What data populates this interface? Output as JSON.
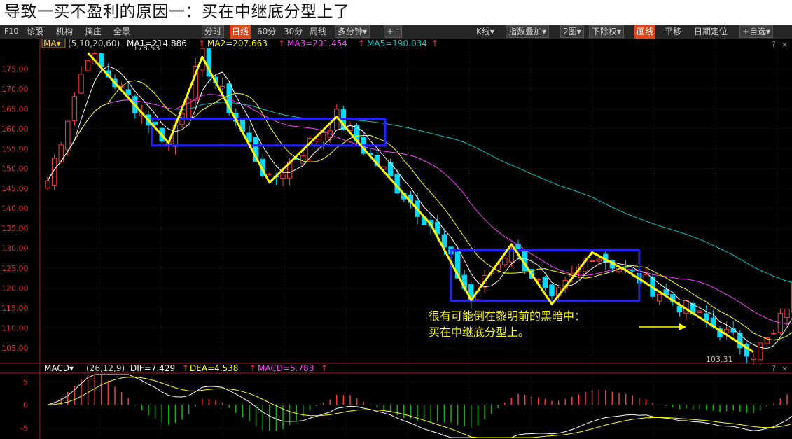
{
  "page_title": "导致一买不盈利的原因一：买在中继底分型上了",
  "toolbar": {
    "left": [
      "F10",
      "诊股",
      "机构",
      "擒庄",
      "全景"
    ],
    "periods": [
      "分时",
      "日线",
      "60分",
      "30分",
      "周线",
      "多分钟▾"
    ],
    "selected_period": "日线",
    "plus_minus": "+ -",
    "right": [
      "K线▾",
      "指数叠加▾",
      "2图▾",
      "下除权▾",
      "画线",
      "平移",
      "日期定位",
      "+自选▾"
    ]
  },
  "colors": {
    "up": "#ff3c3c",
    "down": "#00d8ff",
    "ma1": "#ffffff",
    "ma2": "#ffff00",
    "ma3": "#ff3cff",
    "ma5": "#00c0c0",
    "annotation": "#ffff00",
    "box": "#2222ff"
  },
  "chart_data": {
    "type": "candlestick",
    "main_legend": {
      "indicator": "MA▾",
      "params": "(5,10,20,60)",
      "ma1": "MA1=214.886",
      "ma2": "MA2=207.663",
      "ma3": "MA3=201.454",
      "ma5": "MA5=190.034",
      "arrow": "↑"
    },
    "y_ticks": [
      "175.00",
      "170.00",
      "165.00",
      "160.00",
      "155.00",
      "150.00",
      "145.00",
      "140.00",
      "135.00",
      "130.00",
      "125.00",
      "120.00",
      "115.00",
      "110.00",
      "105.00"
    ],
    "y_values": [
      175,
      170,
      165,
      160,
      155,
      150,
      145,
      140,
      135,
      130,
      125,
      120,
      115,
      110,
      105
    ],
    "ylim": [
      101.5,
      180.5
    ],
    "high_label": "178.53",
    "low_label": "103.31",
    "zigzag": [
      {
        "i": 6,
        "p": 179
      },
      {
        "i": 18,
        "p": 156.5
      },
      {
        "i": 23,
        "p": 178
      },
      {
        "i": 33,
        "p": 146.5
      },
      {
        "i": 43,
        "p": 163
      },
      {
        "i": 47,
        "p": 155
      },
      {
        "i": 57,
        "p": 136
      },
      {
        "i": 63,
        "p": 117
      },
      {
        "i": 69,
        "p": 131
      },
      {
        "i": 75,
        "p": 116
      },
      {
        "i": 81,
        "p": 129
      },
      {
        "i": 86,
        "p": 124.5
      },
      {
        "i": 105,
        "p": 104
      }
    ],
    "boxes": [
      {
        "i0": 15.5,
        "i1": 50.2,
        "p0": 162.5,
        "p1": 155.8
      },
      {
        "i0": 60,
        "i1": 88,
        "p0": 129.5,
        "p1": 116.8
      }
    ],
    "annotation": [
      "很有可能倒在黎明前的黑暗中：",
      "买在中继底分型上。"
    ],
    "annotation_arrow": "→",
    "macd_legend": {
      "name": "MACD▾",
      "params": "(26,12,9)",
      "dif": "DIF=7.429",
      "dea": "DEA=4.538",
      "macd": "MACD=5.783",
      "arrow": "↑"
    },
    "macd_y_ticks": [
      "5",
      "0",
      "-5"
    ],
    "macd_y_values": [
      5,
      0,
      -5
    ],
    "macd_ylim": [
      -7,
      6.5
    ]
  }
}
